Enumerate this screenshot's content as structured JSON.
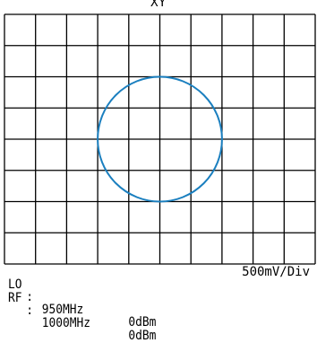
{
  "display": {
    "title": "XY",
    "trace_color": "#1a7fbf",
    "grid_color": "#000000",
    "grid_divisions_x": 10,
    "grid_divisions_y": 8
  },
  "settings": {
    "lo": {
      "label": "LO",
      "separator": ":",
      "frequency": "950MHz",
      "power": "0dBm"
    },
    "rf": {
      "label": "RF",
      "separator": ":",
      "frequency": "1000MHz",
      "power": "0dBm"
    },
    "scale": "500mV/Div"
  },
  "trace": {
    "shape": "circle",
    "center_x_div": 0,
    "center_y_div": 0,
    "radius_div": 2
  }
}
